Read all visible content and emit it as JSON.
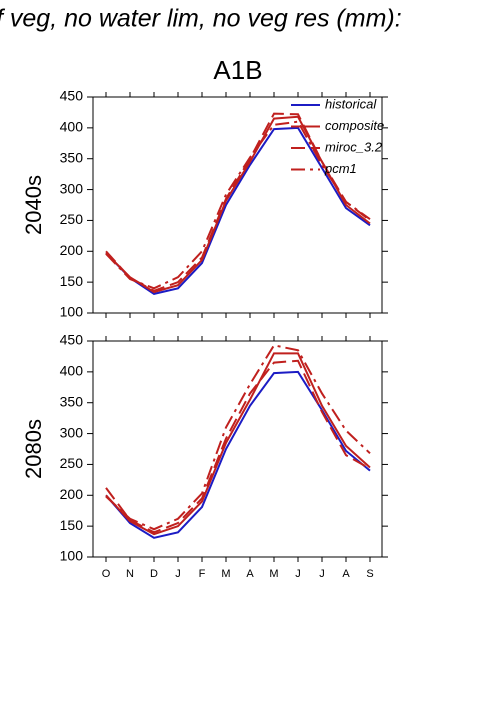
{
  "title": "f veg, no water lim, no veg res (mm):",
  "subtitle": "A1B",
  "chart_data": [
    {
      "type": "line",
      "ylabel": "2040s",
      "categories": [
        null,
        null,
        null,
        null,
        null,
        null,
        null,
        null,
        null,
        null,
        null,
        null
      ],
      "ylim": [
        100,
        450
      ],
      "yticks": [
        100,
        150,
        200,
        250,
        300,
        350,
        400,
        450
      ],
      "legend": "upper right",
      "series": [
        {
          "name": "historical",
          "color": "#1c1cc4",
          "dash": "solid",
          "values": [
            197,
            157,
            131,
            140,
            181,
            275,
            340,
            398,
            400,
            335,
            270,
            242
          ]
        },
        {
          "name": "composite",
          "color": "#c0201e",
          "dash": "solid",
          "values": [
            197,
            158,
            134,
            145,
            186,
            282,
            345,
            415,
            418,
            345,
            275,
            245
          ]
        },
        {
          "name": "miroc_3.2",
          "color": "#c0201e",
          "dash": "dashed",
          "values": [
            200,
            157,
            136,
            150,
            190,
            285,
            350,
            423,
            422,
            345,
            280,
            250
          ]
        },
        {
          "name": "pcm1",
          "color": "#c0201e",
          "dash": "dashdot",
          "values": [
            196,
            155,
            140,
            158,
            200,
            292,
            352,
            405,
            410,
            340,
            280,
            252
          ]
        }
      ]
    },
    {
      "type": "line",
      "ylabel": "2080s",
      "categories": [
        "O",
        "N",
        "D",
        "J",
        "F",
        "M",
        "A",
        "M",
        "J",
        "J",
        "A",
        "S"
      ],
      "ylim": [
        100,
        450
      ],
      "yticks": [
        100,
        150,
        200,
        250,
        300,
        350,
        400,
        450
      ],
      "series": [
        {
          "color": "#1c1cc4",
          "dash": "solid",
          "values": [
            200,
            155,
            131,
            140,
            181,
            275,
            345,
            398,
            400,
            338,
            272,
            240
          ]
        },
        {
          "color": "#c0201e",
          "dash": "solid",
          "values": [
            200,
            158,
            137,
            150,
            190,
            285,
            355,
            430,
            430,
            345,
            280,
            245
          ]
        },
        {
          "color": "#c0201e",
          "dash": "dashed",
          "values": [
            212,
            160,
            140,
            155,
            195,
            292,
            365,
            415,
            418,
            335,
            265,
            243
          ]
        },
        {
          "color": "#c0201e",
          "dash": "dashdot",
          "values": [
            198,
            162,
            145,
            162,
            203,
            310,
            380,
            443,
            435,
            365,
            305,
            268
          ]
        }
      ]
    }
  ]
}
